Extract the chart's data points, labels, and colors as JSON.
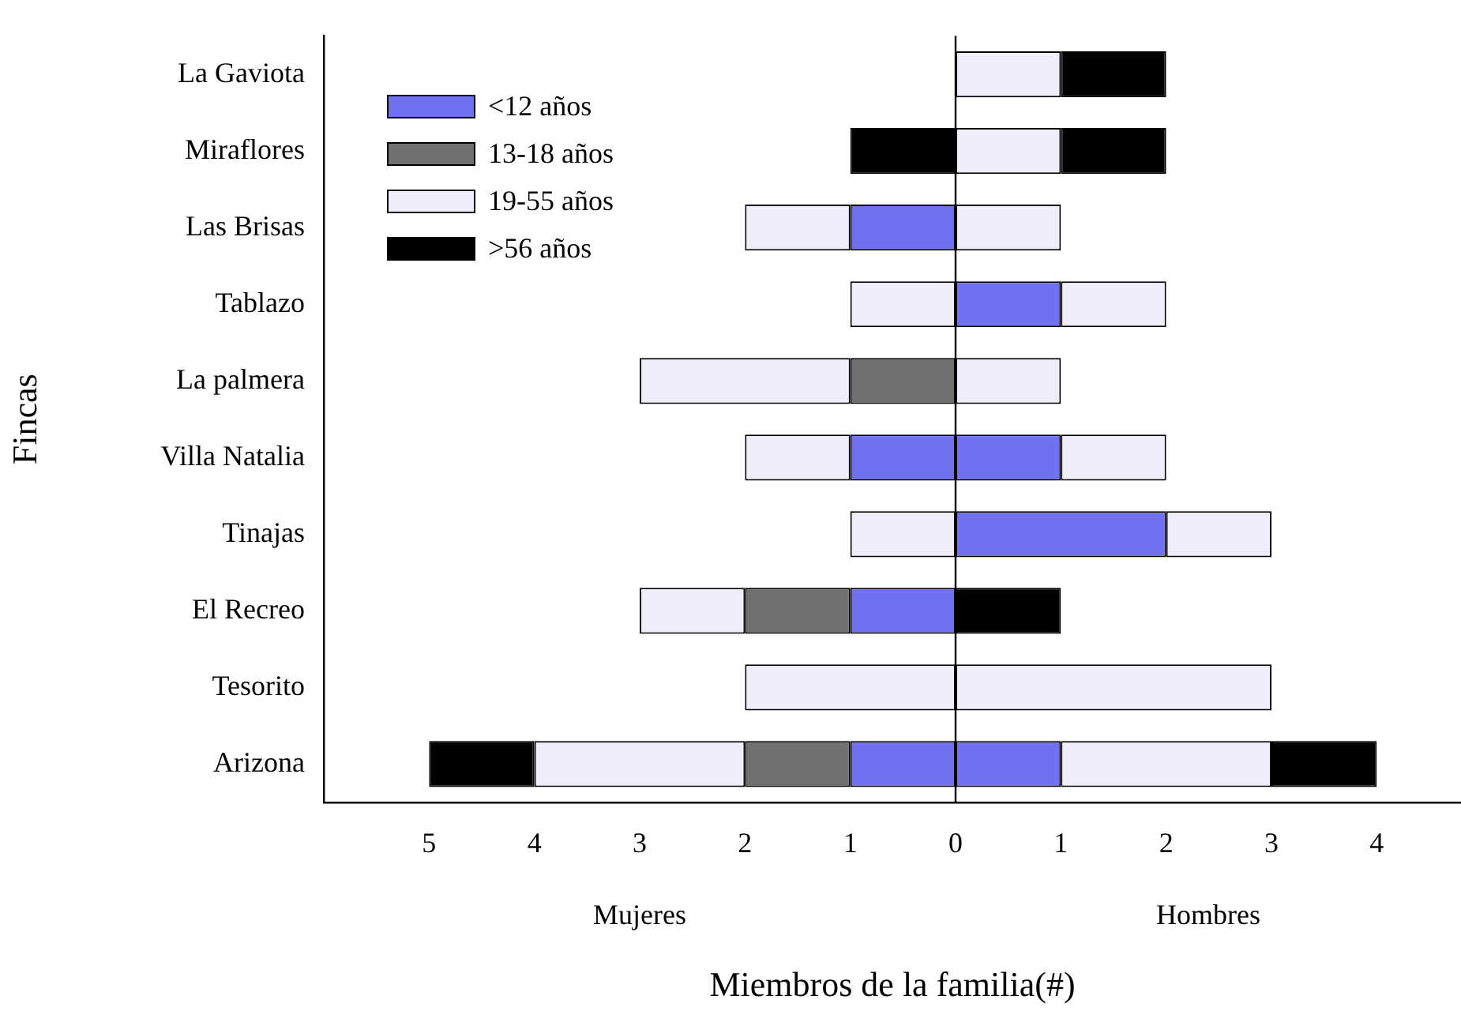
{
  "chart_data": {
    "type": "bar",
    "orientation": "horizontal",
    "stacked": true,
    "xlabel": "Miembros de la familia(#)",
    "ylabel": "Fincas",
    "categories": [
      "La Gaviota",
      "Miraflores",
      "Las Brisas",
      "Tablazo",
      "La palmera",
      "Villa Natalia",
      "Tinajas",
      "El Recreo",
      "Tesorito",
      "Arizona"
    ],
    "series": [
      {
        "name": "<12 años",
        "color": "#7070f0",
        "values": [
          0,
          0,
          -1,
          0,
          0,
          -1,
          0,
          -1,
          0,
          -1
        ]
      },
      {
        "name": "13-18 años",
        "color": "#707070",
        "values": [
          0,
          0,
          0,
          0,
          -1,
          0,
          0,
          -1,
          0,
          -1
        ]
      },
      {
        "name": "19-55 años",
        "color": "#eeeefa",
        "values": [
          0,
          0,
          -1,
          -1,
          -2,
          -1,
          -1,
          -1,
          -2,
          -2
        ]
      },
      {
        "name": ">56 años",
        "color": "#000000",
        "values": [
          0,
          -1,
          0,
          0,
          0,
          0,
          0,
          0,
          0,
          -1
        ]
      },
      {
        "color": "#7070f0",
        "values": [
          0,
          0,
          0,
          1,
          0,
          1,
          2,
          0,
          0,
          1
        ]
      },
      {
        "color": "#707070",
        "values": [
          0,
          0,
          0,
          0,
          0,
          0,
          0,
          0,
          0,
          0
        ]
      },
      {
        "color": "#eeeefa",
        "values": [
          1,
          1,
          1,
          1,
          1,
          1,
          1,
          0,
          3,
          2
        ]
      },
      {
        "color": "#000000",
        "values": [
          1,
          1,
          0,
          0,
          0,
          0,
          0,
          1,
          0,
          1
        ]
      }
    ],
    "xlim": [
      -6,
      4.8
    ],
    "xticks": [
      {
        "value": -6,
        "label": null
      },
      {
        "value": -5,
        "label": "5"
      },
      {
        "value": -4,
        "label": "4"
      },
      {
        "value": -3,
        "label": "3"
      },
      {
        "value": -2,
        "label": "2"
      },
      {
        "value": -1,
        "label": "1"
      },
      0,
      1,
      2,
      3,
      4
    ],
    "ref_lines": [
      {
        "axis": "x",
        "value": 0,
        "color": "#000000"
      }
    ],
    "annotations": [
      "Mujeres",
      "Hombres"
    ],
    "legend": "top left",
    "grid": false
  }
}
